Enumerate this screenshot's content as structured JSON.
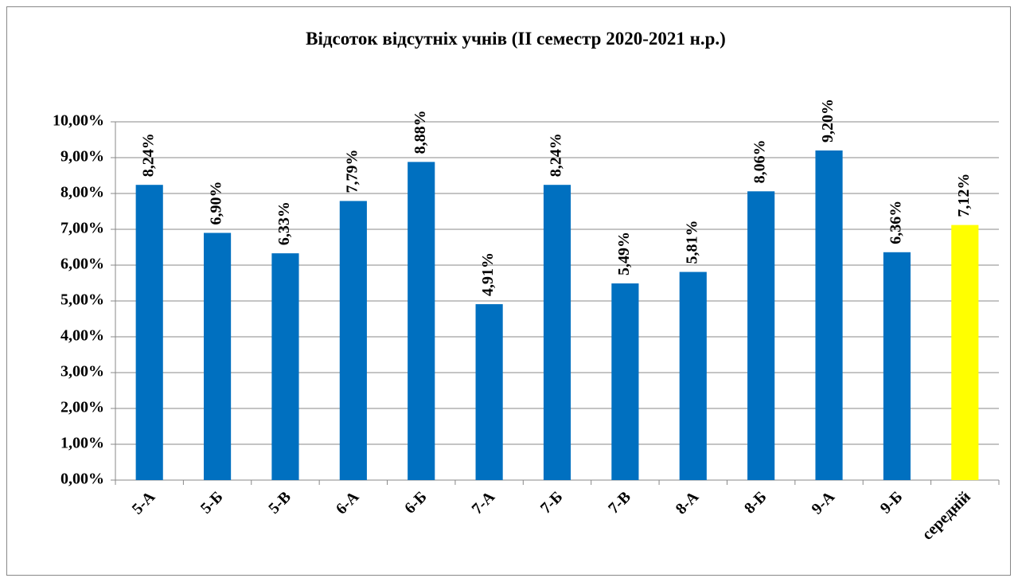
{
  "chart_data": {
    "type": "bar",
    "title": "Відсоток відсутніх учнів (ІІ семестр 2020-2021 н.р.)",
    "categories": [
      "5-А",
      "5-Б",
      "5-В",
      "6-А",
      "6-Б",
      "7-А",
      "7-Б",
      "7-В",
      "8-А",
      "8-Б",
      "9-А",
      "9-Б",
      "середній"
    ],
    "values": [
      8.24,
      6.9,
      6.33,
      7.79,
      8.88,
      4.91,
      8.24,
      5.49,
      5.81,
      8.06,
      9.2,
      6.36,
      7.12
    ],
    "value_labels": [
      "8,24%",
      "6,90%",
      "6,33%",
      "7,79%",
      "8,88%",
      "4,91%",
      "8,24%",
      "5,49%",
      "5,81%",
      "8,06%",
      "9,20%",
      "6,36%",
      "7,12%"
    ],
    "colors": [
      "#0070c0",
      "#0070c0",
      "#0070c0",
      "#0070c0",
      "#0070c0",
      "#0070c0",
      "#0070c0",
      "#0070c0",
      "#0070c0",
      "#0070c0",
      "#0070c0",
      "#0070c0",
      "#ffff00"
    ],
    "ylim": [
      0,
      10
    ],
    "yticks": [
      {
        "value": 0,
        "label": "0,00%"
      },
      {
        "value": 1,
        "label": "1,00%"
      },
      {
        "value": 2,
        "label": "2,00%"
      },
      {
        "value": 3,
        "label": "3,00%"
      },
      {
        "value": 4,
        "label": "4,00%"
      },
      {
        "value": 5,
        "label": "5,00%"
      },
      {
        "value": 6,
        "label": "6,00%"
      },
      {
        "value": 7,
        "label": "7,00%"
      },
      {
        "value": 8,
        "label": "8,00%"
      },
      {
        "value": 9,
        "label": "9,00%"
      },
      {
        "value": 10,
        "label": "10,00%"
      }
    ],
    "grid": true
  }
}
